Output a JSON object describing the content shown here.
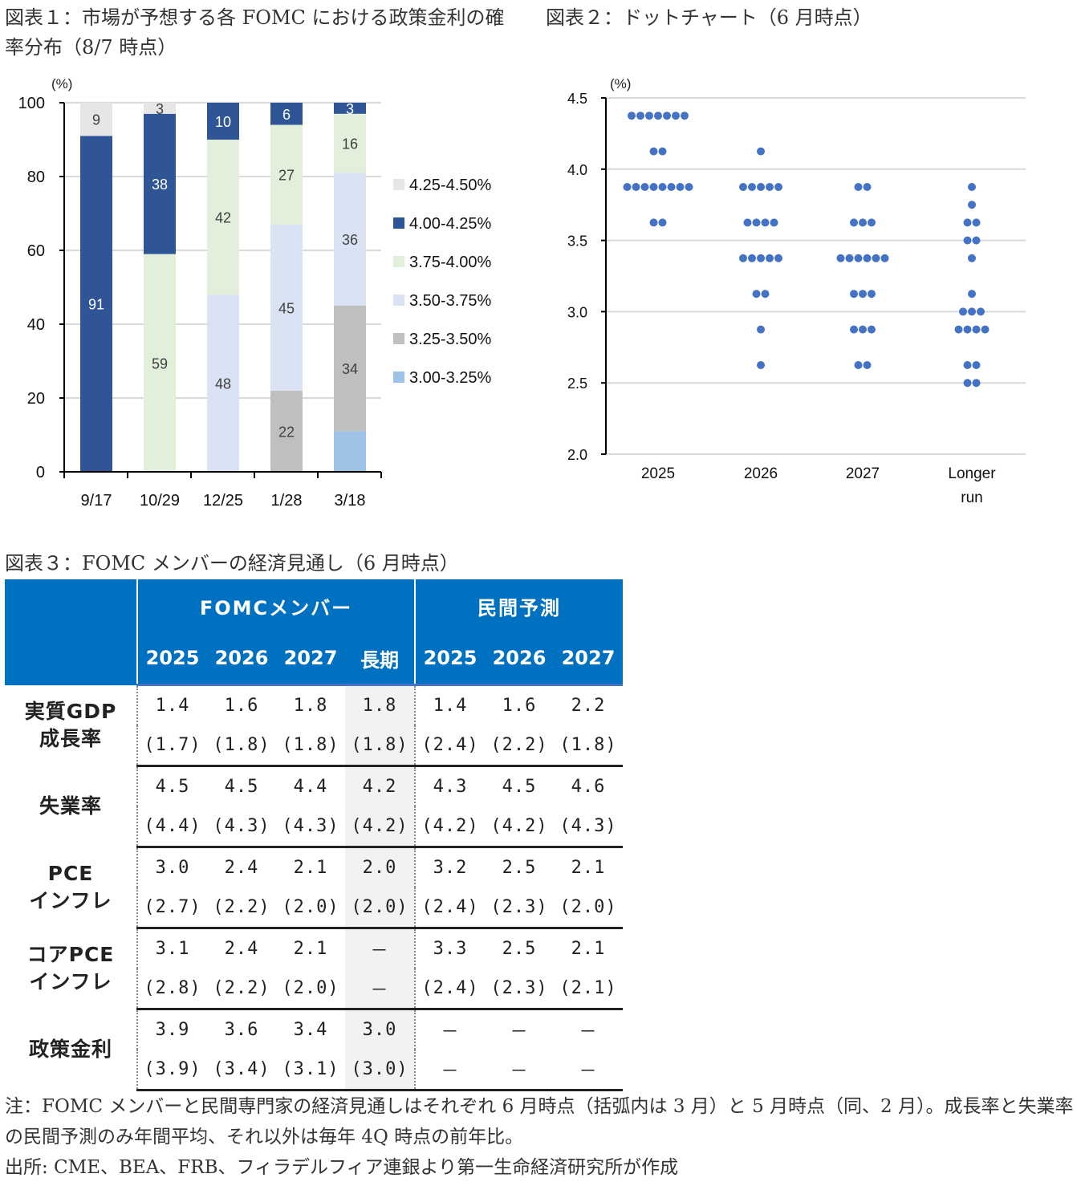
{
  "figure1": {
    "title": "図表１：市場が予想する各 FOMC における政策金利の確率分布（8/7 時点）"
  },
  "figure2": {
    "title": "図表２：ドットチャート（6 月時点）"
  },
  "figure3": {
    "title": "図表３：FOMC メンバーの経済見通し（6 月時点）",
    "group_headers": [
      "FOMCメンバー",
      "民間予測"
    ],
    "year_headers": [
      "2025",
      "2026",
      "2027",
      "長期",
      "2025",
      "2026",
      "2027"
    ],
    "rows": [
      {
        "label_line1": "実質GDP",
        "label_line2": "成長率",
        "current": [
          "1.4",
          "1.6",
          "1.8",
          "1.8",
          "1.4",
          "1.6",
          "2.2"
        ],
        "previous": [
          "(1.7)",
          "(1.8)",
          "(1.8)",
          "(1.8)",
          "(2.4)",
          "(2.2)",
          "(1.8)"
        ]
      },
      {
        "label_line1": "失業率",
        "label_line2": "",
        "current": [
          "4.5",
          "4.5",
          "4.4",
          "4.2",
          "4.3",
          "4.5",
          "4.6"
        ],
        "previous": [
          "(4.4)",
          "(4.3)",
          "(4.3)",
          "(4.2)",
          "(4.2)",
          "(4.2)",
          "(4.3)"
        ]
      },
      {
        "label_line1": "PCE",
        "label_line2": "インフレ",
        "current": [
          "3.0",
          "2.4",
          "2.1",
          "2.0",
          "3.2",
          "2.5",
          "2.1"
        ],
        "previous": [
          "(2.7)",
          "(2.2)",
          "(2.0)",
          "(2.0)",
          "(2.4)",
          "(2.3)",
          "(2.0)"
        ]
      },
      {
        "label_line1": "コアPCE",
        "label_line2": "インフレ",
        "current": [
          "3.1",
          "2.4",
          "2.1",
          "－",
          "3.3",
          "2.5",
          "2.1"
        ],
        "previous": [
          "(2.8)",
          "(2.2)",
          "(2.0)",
          "－",
          "(2.4)",
          "(2.3)",
          "(2.1)"
        ]
      },
      {
        "label_line1": "政策金利",
        "label_line2": "",
        "current": [
          "3.9",
          "3.6",
          "3.4",
          "3.0",
          "－",
          "－",
          "－"
        ],
        "previous": [
          "(3.9)",
          "(3.4)",
          "(3.1)",
          "(3.0)",
          "－",
          "－",
          "－"
        ]
      }
    ]
  },
  "notes": {
    "note": "注：FOMC メンバーと民間専門家の経済見通しはそれぞれ 6 月時点（括弧内は 3 月）と 5 月時点（同、2 月）。成長率と失業率の民間予測のみ年間平均、それ以外は毎年 4Q 時点の前年比。",
    "source": "出所: CME、BEA、FRB、フィラデルフィア連銀より第一生命経済研究所が作成"
  },
  "chart_data": [
    {
      "type": "bar",
      "stacked": true,
      "title": "図表１：市場が予想する各 FOMC における政策金利の確率分布（8/7 時点）",
      "xlabel": "",
      "ylabel": "(%)",
      "ylim": [
        0,
        100
      ],
      "yticks": [
        0,
        20,
        40,
        60,
        80,
        100
      ],
      "grid": true,
      "legend_position": "right",
      "categories": [
        "9/17",
        "10/29",
        "12/25",
        "1/28",
        "3/18"
      ],
      "series": [
        {
          "name": "3.00-3.25%",
          "color": "#9dc3e6",
          "values": [
            0,
            0,
            0,
            0,
            11
          ],
          "labels": [
            "",
            "",
            "",
            "",
            ""
          ]
        },
        {
          "name": "3.25-3.50%",
          "color": "#bfbfbf",
          "values": [
            0,
            0,
            0,
            22,
            34
          ],
          "labels": [
            "",
            "",
            "",
            "22",
            "34"
          ]
        },
        {
          "name": "3.50-3.75%",
          "color": "#dae3f3",
          "values": [
            0,
            0,
            48,
            45,
            36
          ],
          "labels": [
            "",
            "",
            "48",
            "45",
            "36"
          ]
        },
        {
          "name": "3.75-4.00%",
          "color": "#e2efda",
          "values": [
            0,
            59,
            42,
            27,
            16
          ],
          "labels": [
            "",
            "59",
            "42",
            "27",
            "16"
          ]
        },
        {
          "name": "4.00-4.25%",
          "color": "#2f5597",
          "values": [
            91,
            38,
            10,
            6,
            3
          ],
          "labels": [
            "91",
            "38",
            "10",
            "6",
            "3"
          ]
        },
        {
          "name": "4.25-4.50%",
          "color": "#e7e6e6",
          "values": [
            9,
            3,
            0,
            0,
            0
          ],
          "labels": [
            "9",
            "3",
            "",
            "",
            ""
          ]
        }
      ],
      "legend_order": [
        "4.25-4.50%",
        "4.00-4.25%",
        "3.75-4.00%",
        "3.50-3.75%",
        "3.25-3.50%",
        "3.00-3.25%"
      ]
    },
    {
      "type": "scatter",
      "subtype": "dot-plot",
      "title": "図表２：ドットチャート（6 月時点）",
      "ylabel": "(%)",
      "ylim": [
        2.0,
        4.5
      ],
      "yticks": [
        "2.0",
        "2.5",
        "3.0",
        "3.5",
        "4.0",
        "4.5"
      ],
      "grid": true,
      "dot_color": "#4472c4",
      "categories": [
        "2025",
        "2026",
        "2027",
        "Longer run"
      ],
      "x_tick_labels": [
        [
          "2025"
        ],
        [
          "2026"
        ],
        [
          "2027"
        ],
        [
          "Longer",
          "run"
        ]
      ],
      "series": [
        {
          "name": "2025",
          "points": [
            [
              4.375,
              7
            ],
            [
              4.125,
              2
            ],
            [
              3.875,
              8
            ],
            [
              3.625,
              2
            ]
          ]
        },
        {
          "name": "2026",
          "points": [
            [
              4.125,
              1
            ],
            [
              3.875,
              5
            ],
            [
              3.625,
              4
            ],
            [
              3.375,
              5
            ],
            [
              3.125,
              2
            ],
            [
              2.875,
              1
            ],
            [
              2.625,
              1
            ]
          ]
        },
        {
          "name": "2027",
          "points": [
            [
              3.875,
              2
            ],
            [
              3.625,
              3
            ],
            [
              3.375,
              6
            ],
            [
              3.125,
              3
            ],
            [
              2.875,
              3
            ],
            [
              2.625,
              2
            ]
          ]
        },
        {
          "name": "Longer run",
          "points": [
            [
              3.875,
              1
            ],
            [
              3.75,
              1
            ],
            [
              3.625,
              2
            ],
            [
              3.5,
              2
            ],
            [
              3.375,
              1
            ],
            [
              3.125,
              1
            ],
            [
              3.0,
              3
            ],
            [
              2.875,
              4
            ],
            [
              2.625,
              2
            ],
            [
              2.5,
              2
            ]
          ]
        }
      ]
    }
  ]
}
